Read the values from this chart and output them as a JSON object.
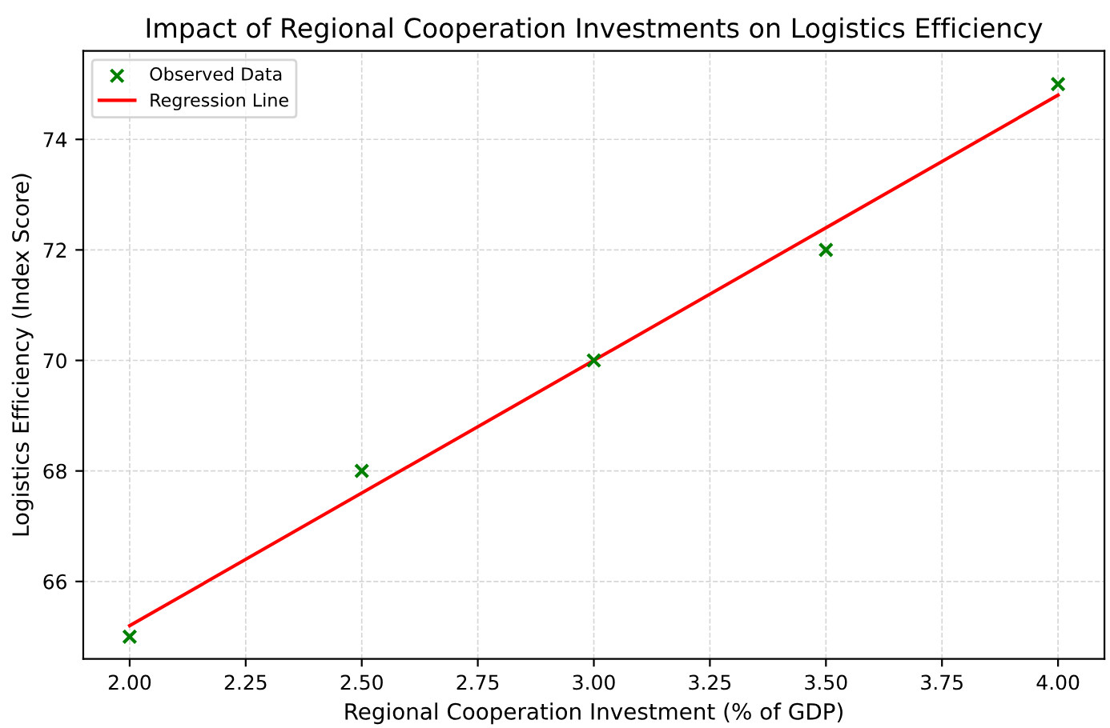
{
  "chart_data": {
    "type": "scatter",
    "title": "Impact of Regional Cooperation Investments on Logistics Efficiency",
    "xlabel": "Regional Cooperation Investment (% of GDP)",
    "ylabel": "Logistics Efficiency (Index Score)",
    "series": [
      {
        "name": "Observed Data",
        "color": "#008000",
        "marker": "cross",
        "x": [
          2.0,
          2.5,
          3.0,
          3.5,
          4.0
        ],
        "values": [
          65,
          68,
          70,
          72,
          75
        ]
      },
      {
        "name": "Regression Line",
        "type": "line",
        "color": "#ff0000",
        "marker": "none",
        "line_style": "solid",
        "x": [
          2.0,
          4.0
        ],
        "values": [
          65.2,
          74.8
        ]
      }
    ],
    "xlim": [
      1.9,
      4.1
    ],
    "ylim": [
      64.6,
      75.6
    ],
    "xticks": [
      {
        "value": 2,
        "label": "2.00"
      },
      2.25,
      {
        "value": 2.5,
        "label": "2.50"
      },
      2.75,
      {
        "value": 3,
        "label": "3.00"
      },
      3.25,
      {
        "value": 3.5,
        "label": "3.50"
      },
      3.75,
      {
        "value": 4,
        "label": "4.00"
      }
    ],
    "yticks": [
      66,
      68,
      70,
      72,
      74
    ],
    "grid": true,
    "legend": "top left"
  }
}
